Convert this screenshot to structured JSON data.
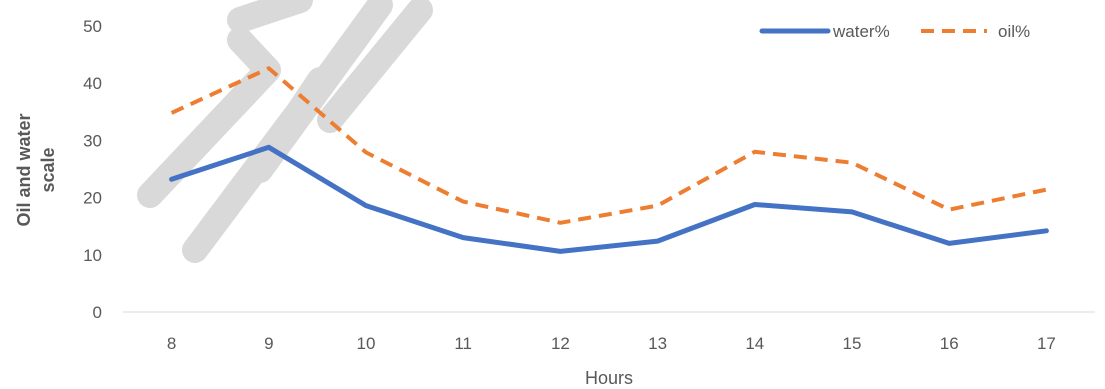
{
  "chart_data": {
    "type": "line",
    "title": "",
    "xlabel": "Hours",
    "ylabel_lines": [
      "Oil and water",
      "scale"
    ],
    "categories": [
      "8",
      "9",
      "10",
      "11",
      "12",
      "13",
      "14",
      "15",
      "16",
      "17"
    ],
    "ylim": [
      0,
      50
    ],
    "yticks": [
      0,
      10,
      20,
      30,
      40,
      50
    ],
    "grid": false,
    "legend_position": "top-right",
    "series": [
      {
        "name": "water%",
        "values": [
          23.2,
          28.8,
          18.6,
          13.0,
          10.6,
          12.4,
          18.8,
          17.5,
          12.0,
          14.2
        ],
        "color": "#4472c4",
        "style": "solid"
      },
      {
        "name": "oil%",
        "values": [
          34.8,
          42.6,
          27.9,
          19.3,
          15.6,
          18.6,
          28.0,
          26.1,
          17.9,
          21.4
        ],
        "color": "#ed7d31",
        "style": "dashed"
      }
    ]
  },
  "watermark_color": "#d9d9d9"
}
